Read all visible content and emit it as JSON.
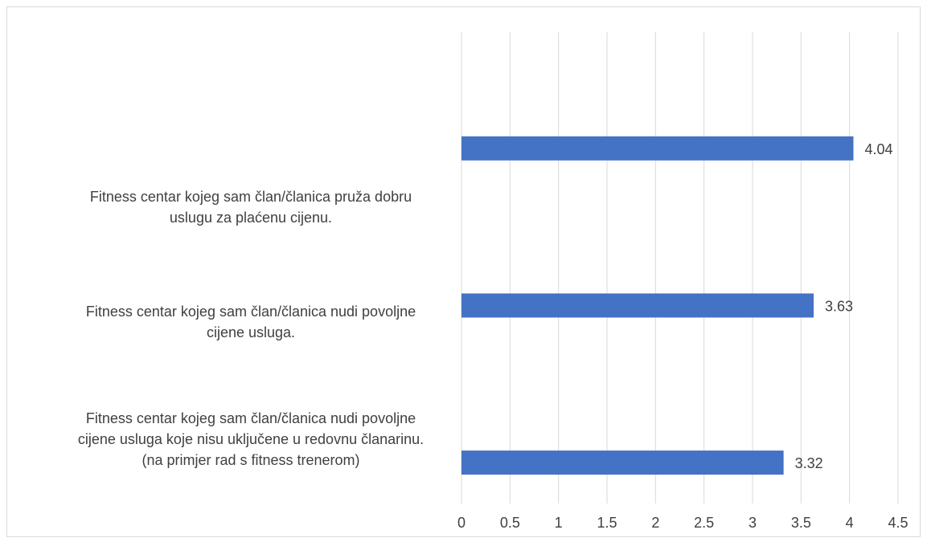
{
  "chart_data": {
    "type": "bar",
    "orientation": "horizontal",
    "categories": [
      [
        "Fitness centar kojeg sam član/članica pruža dobru",
        "uslugu za plaćenu cijenu."
      ],
      [
        "Fitness centar kojeg sam član/članica nudi povoljne",
        "cijene usluga."
      ],
      [
        "Fitness centar kojeg sam član/članica nudi povoljne",
        "cijene usluga koje nisu uključene u redovnu članarinu.",
        "(na primjer rad s fitness trenerom)"
      ]
    ],
    "values": [
      4.04,
      3.63,
      3.32
    ],
    "data_labels": [
      "4.04",
      "3.63",
      "3.32"
    ],
    "x_ticks": [
      "0",
      "0.5",
      "1",
      "1.5",
      "2",
      "2.5",
      "3",
      "3.5",
      "4",
      "4.5"
    ],
    "xlim": [
      0,
      4.5
    ],
    "grid": true,
    "legend": "none",
    "bar_color": "#4472c4",
    "grid_color": "#d9d9d9",
    "text_color": "#404040"
  }
}
